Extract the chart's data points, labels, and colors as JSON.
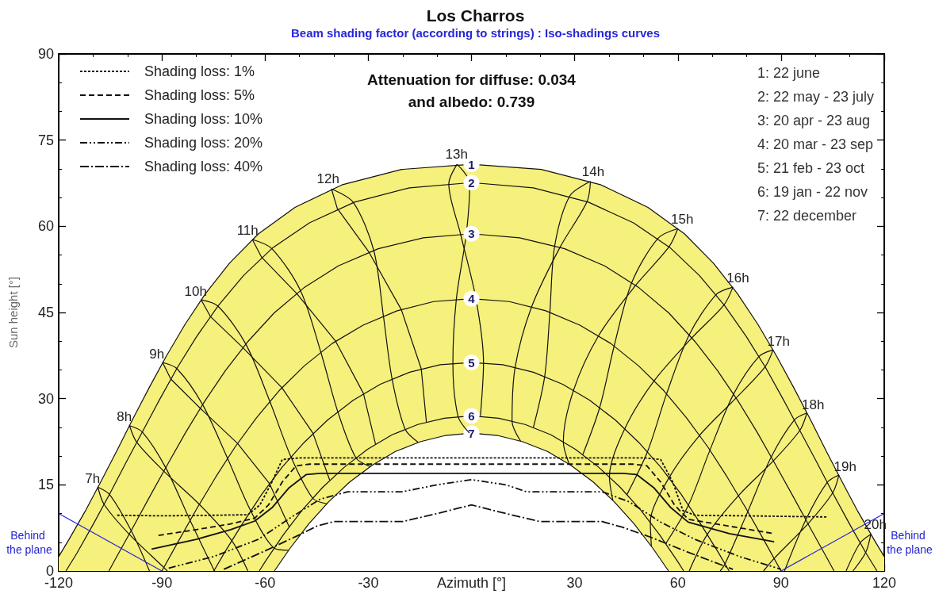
{
  "chart_data": {
    "type": "line",
    "title": "Los Charros",
    "subtitle": "Beam shading factor (according to strings) : Iso-shadings curves",
    "xlabel": "Azimuth [°]",
    "ylabel": "Sun height [°]",
    "xlim": [
      -120,
      120
    ],
    "xticks": [
      -120,
      -90,
      -60,
      -30,
      {
        "value": 0,
        "label": null
      },
      30,
      60,
      90,
      120
    ],
    "ylim": [
      0,
      90
    ],
    "yticks": [
      0,
      15,
      30,
      45,
      60,
      75,
      90
    ],
    "grid": false,
    "legend": "top left",
    "annotations": [
      "Attenuation for diffuse: 0.034",
      "and albedo: 0.739",
      "1: 22 june",
      "2: 22 may - 23 july",
      "3: 20 apr - 23 aug",
      "4: 20 mar - 23 sep",
      "5: 21 feb - 23 oct",
      "6: 19 jan - 22 nov",
      "7: 22 december",
      "Behind the plane",
      "Behind the plane"
    ],
    "series": [
      {
        "type": "area",
        "name": "1",
        "color": "#f6f07c",
        "x": [
          -120,
          -117.1,
          -112.3,
          -107.7,
          -103.1,
          -98.5,
          -93.7,
          -88.7,
          -83.3,
          -77.3,
          -70.3,
          -61.9,
          -51.3,
          -37.7,
          -20.3,
          0,
          20.3,
          37.7,
          51.3,
          61.9,
          70.3,
          77.3,
          83.3,
          88.7,
          93.7,
          98.5,
          103.1,
          107.7,
          112.3,
          117.1,
          120
        ],
        "values": [
          2.5,
          5.4,
          10.4,
          15.6,
          20.9,
          26.4,
          31.9,
          37.4,
          42.9,
          48.3,
          53.6,
          58.7,
          63.3,
          67.2,
          69.9,
          70.8,
          69.9,
          67.2,
          63.3,
          58.7,
          53.6,
          48.3,
          42.9,
          37.4,
          31.9,
          26.4,
          20.9,
          15.6,
          10.4,
          5.4,
          2.5
        ]
      },
      {
        "name": "2",
        "color": "#111111",
        "x": [
          -117.9,
          -114.7,
          -109.9,
          -105.1,
          -100.4,
          -95.6,
          -90.7,
          -85.5,
          -79.9,
          -73.6,
          -66.3,
          -57.7,
          -47.1,
          -34,
          -18,
          0,
          18,
          34,
          47.1,
          57.7,
          66.3,
          73.6,
          79.9,
          85.5,
          90.7,
          95.6,
          100.4,
          105.1,
          109.9,
          114.7,
          117.9
        ],
        "values": [
          0,
          3.1,
          8.2,
          13.5,
          18.9,
          24.3,
          29.8,
          35.4,
          40.8,
          46.2,
          51.4,
          56.3,
          60.6,
          64.2,
          66.7,
          67.6,
          66.7,
          64.2,
          60.6,
          56.3,
          51.4,
          46.2,
          40.8,
          35.4,
          29.8,
          24.3,
          18.9,
          13.5,
          8.2,
          3.1,
          0
        ]
      },
      {
        "name": "3",
        "color": "#111111",
        "x": [
          -105.4,
          -103.4,
          -98.4,
          -93.4,
          -88.3,
          -83.1,
          -77.5,
          -71.5,
          -64.9,
          -57.4,
          -48.7,
          -38.7,
          -27.1,
          -14,
          0,
          14,
          27.1,
          38.7,
          48.7,
          57.4,
          64.9,
          71.5,
          77.5,
          83.1,
          88.3,
          93.4,
          98.4,
          103.4,
          105.4
        ],
        "values": [
          0,
          2.2,
          7.6,
          13.1,
          18.6,
          24.1,
          29.6,
          34.9,
          40,
          44.9,
          49.3,
          53.1,
          56.1,
          58,
          58.7,
          58,
          56.1,
          53.1,
          49.3,
          44.9,
          40,
          34.9,
          29.6,
          24.1,
          18.6,
          13.1,
          7.6,
          2.2,
          0
        ]
      },
      {
        "name": "4",
        "color": "#111111",
        "x": [
          -90,
          -84.9,
          -79.7,
          -74.3,
          -68.7,
          -62.6,
          -55.9,
          -48.6,
          -40.5,
          -31.5,
          -21.6,
          -11,
          0,
          11,
          21.6,
          31.5,
          40.5,
          48.6,
          55.9,
          62.6,
          68.7,
          74.3,
          79.7,
          84.9,
          90
        ],
        "values": [
          0,
          5.5,
          11,
          16.4,
          21.6,
          26.6,
          31.4,
          35.7,
          39.6,
          42.8,
          45.3,
          46.9,
          47.4,
          46.9,
          45.3,
          42.8,
          39.6,
          35.7,
          31.4,
          26.6,
          21.6,
          16.4,
          11,
          5.5,
          0
        ]
      },
      {
        "name": "5",
        "color": "#111111",
        "x": [
          -74.9,
          -71.7,
          -66.4,
          -60.9,
          -55,
          -48.6,
          -41.8,
          -34.4,
          -26.5,
          -18,
          -9.1,
          0,
          9.1,
          18,
          26.5,
          34.4,
          41.8,
          48.6,
          55,
          60.9,
          66.4,
          71.7,
          74.9
        ],
        "values": [
          0,
          3.3,
          8.4,
          13.4,
          18.1,
          22.4,
          26.3,
          29.7,
          32.5,
          34.6,
          35.9,
          36.3,
          35.9,
          34.6,
          32.5,
          29.7,
          26.3,
          22.4,
          18.1,
          13.4,
          8.4,
          3.3,
          0
        ]
      },
      {
        "name": "6",
        "color": "#111111",
        "x": [
          -61.7,
          -60,
          -54.7,
          -49.2,
          -43.2,
          -36.9,
          -30.2,
          -23.1,
          -15.6,
          -7.9,
          0,
          7.9,
          15.6,
          23.1,
          30.2,
          36.9,
          43.2,
          49.2,
          54.7,
          60,
          61.7
        ],
        "values": [
          0,
          1.6,
          6.3,
          10.6,
          14.6,
          18.1,
          21.2,
          23.7,
          25.5,
          26.6,
          27,
          26.6,
          25.5,
          23.7,
          21.2,
          18.1,
          14.6,
          10.6,
          6.3,
          1.6,
          0
        ]
      },
      {
        "type": "area",
        "name": "7",
        "color": "#ffffff",
        "x": [
          -57.3,
          -52.8,
          -47.3,
          -41.6,
          -35.4,
          -28.9,
          -22.1,
          -14.9,
          -7.5,
          0,
          7.5,
          14.9,
          22.1,
          28.9,
          35.4,
          41.6,
          47.3,
          52.8,
          57.3
        ],
        "values": [
          0,
          3.9,
          8.2,
          12,
          15.5,
          18.4,
          20.8,
          22.5,
          23.6,
          24,
          23.6,
          22.5,
          20.8,
          18.4,
          15.5,
          12,
          8.2,
          3.9,
          0
        ]
      },
      {
        "name": "7h",
        "color": "#111111",
        "x": [
          -93.6,
          -98.9,
          -105.2,
          -108.6,
          -106.8,
          -99.5,
          -89.4,
          -88.4
        ],
        "values": [
          0,
          7,
          13.3,
          14.6,
          11.6,
          6.4,
          0.6,
          0
        ]
      },
      {
        "name": "8h",
        "color": "#111111",
        "x": [
          -74.6,
          -74.8,
          -81.8,
          -88.9,
          -95.7,
          -99.4,
          -97.3,
          -89.5,
          -79.1,
          -69.7,
          -65
        ],
        "values": [
          0,
          0.1,
          8.8,
          18,
          24.2,
          25.3,
          22.4,
          17.4,
          11.6,
          5.3,
          0
        ]
      },
      {
        "name": "9h",
        "color": "#111111",
        "x": [
          -53.2,
          -57.4,
          -64.2,
          -70.9,
          -78.2,
          -85.6,
          -89.8
        ],
        "values": [
          3.6,
          4,
          10.5,
          19.6,
          29,
          35.2,
          36.3
        ]
      },
      {
        "color": "#111111",
        "x": [
          -89.8,
          -87.4,
          -78.8,
          -68,
          -58.7,
          -53
        ],
        "values": [
          36.3,
          33.4,
          28.3,
          22.2,
          15.2,
          7.7
        ]
      },
      {
        "name": "10h",
        "color": "#111111",
        "x": [
          -42,
          -46.2,
          -52.5,
          -58.6,
          -65.6,
          -73.7,
          -78.6
        ],
        "values": [
          11.7,
          12.7,
          19.9,
          29.5,
          39.5,
          46.1,
          47.2
        ]
      },
      {
        "color": "#111111",
        "x": [
          -78.6,
          -75.9,
          -66.5,
          -55.1,
          -46.1,
          -41.2
        ],
        "values": [
          47.2,
          44.3,
          38.9,
          31.9,
          24,
          15.8
        ]
      },
      {
        "name": "11h",
        "color": "#111111",
        "x": [
          -29.5,
          -33.6,
          -38.9,
          -43.8,
          -49.7,
          -58,
          -63.7
        ],
        "values": [
          18.2,
          19.7,
          27.8,
          38.1,
          48.8,
          56.1,
          57.7
        ]
      },
      {
        "color": "#111111",
        "x": [
          -63.7,
          -61,
          -50.8,
          -39.5,
          -31.4,
          -27.9
        ],
        "values": [
          57.7,
          54.6,
          48.3,
          40,
          30.9,
          22.1
        ]
      },
      {
        "name": "12h",
        "color": "#111111",
        "x": [
          -15.5,
          -19.3,
          -23.1,
          -25.6,
          -28.4,
          -34.4,
          -40.7
        ],
        "values": [
          22.4,
          24.7,
          33.5,
          44.4,
          55.8,
          64.2,
          66.5
        ]
      },
      {
        "color": "#111111",
        "x": [
          -40.7,
          -39,
          -29.8,
          -20.4,
          -14.6,
          -13.1
        ],
        "values": [
          66.5,
          63.1,
          55.5,
          45.5,
          35.2,
          25.9
        ]
      },
      {
        "name": "13h",
        "color": "#111111",
        "x": [
          -0.6,
          -3.9,
          -5.4,
          -4.4,
          -1.5,
          -0.5,
          -4.2
        ],
        "values": [
          24,
          26.9,
          36.2,
          47.3,
          58.7,
          67.5,
          70.8
        ]
      },
      {
        "color": "#111111",
        "x": [
          -4.2,
          -6.6,
          -3.2,
          1.3,
          3.5,
          2.6
        ],
        "values": [
          70.8,
          67.4,
          58.7,
          47.4,
          36.3,
          27
        ]
      },
      {
        "name": "14h",
        "color": "#111111",
        "x": [
          14.3,
          11.8,
          12.7,
          17.5,
          25.7,
          33.6,
          34.6
        ],
        "values": [
          22.6,
          26.1,
          35.5,
          46,
          56.3,
          64.3,
          67.8
        ]
      },
      {
        "color": "#111111",
        "x": [
          34.6,
          28.6,
          24.2,
          22.8,
          21.3,
          18
        ],
        "values": [
          67.8,
          65.3,
          56.6,
          45.1,
          33.9,
          25
        ]
      },
      {
        "name": "15h",
        "color": "#111111",
        "x": [
          28.4,
          26.7,
          29.7,
          37,
          47.7,
          57.4,
          60
        ],
        "values": [
          18.6,
          22.5,
          31.5,
          41,
          49.7,
          56.4,
          59.6
        ]
      },
      {
        "color": "#111111",
        "x": [
          60,
          54.2,
          46.6,
          41.5,
          37.3,
          32.4
        ],
        "values": [
          59.6,
          57.9,
          50.2,
          39.2,
          28.5,
          20.3
        ]
      },
      {
        "name": "16h",
        "color": "#111111",
        "x": [
          41.1,
          40.1,
          44.6,
          53.1,
          64.1,
          73.4,
          76
        ],
        "values": [
          12.3,
          16.4,
          24.8,
          33.1,
          40.6,
          46.3,
          49.4
        ]
      },
      {
        "color": "#111111",
        "x": [
          76,
          71.1,
          63.3,
          56.7,
          51.2,
          45.2
        ],
        "values": [
          49.4,
          48.1,
          41.1,
          30.8,
          20.8,
          13.3
        ]
      },
      {
        "name": "17h",
        "color": "#111111",
        "x": [
          52.3,
          52,
          57.4,
          66.3,
          76.9,
          85.3,
          87.7
        ],
        "values": [
          4.3,
          8.5,
          16.2,
          23.6,
          30.1,
          35.5,
          38.5
        ]
      },
      {
        "color": "#111111",
        "x": [
          87.7,
          83.5,
          76.2,
          69.3,
          63.1,
          56.5
        ],
        "values": [
          38.5,
          37.3,
          30.8,
          21,
          11.5,
          4.8
        ]
      },
      {
        "name": "18h",
        "color": "#111111",
        "x": [
          63.3,
          68.6,
          77.6,
          87.8,
          95.5,
          97.5,
          93.9,
          87.2,
          80.3,
          73.7,
          72.3
        ],
        "values": [
          0,
          6.4,
          13.1,
          19.2,
          24.5,
          27.5,
          26.3,
          19.9,
          10.3,
          1.2,
          0
        ]
      },
      {
        "name": "19h",
        "color": "#111111",
        "x": [
          84.9,
          88,
          97.8,
          105,
          106.8,
          103.4,
          97.2,
          91
        ],
        "values": [
          0,
          2.2,
          8.2,
          13.6,
          16.7,
          15.4,
          8.9,
          0
        ]
      },
      {
        "name": "20h",
        "color": "#111111",
        "x": [
          110.9,
          114.6,
          116.1,
          113,
          108.9
        ],
        "values": [
          0,
          3.2,
          6.4,
          4.9,
          0
        ]
      },
      {
        "name": "Shading loss: 1%",
        "color": "#111111",
        "line_style": "dotted",
        "x": [
          -103,
          -90,
          -75,
          -65,
          -61.5,
          -58,
          -55,
          -50,
          0,
          50,
          55,
          58.5,
          61.5,
          65,
          80,
          103.5
        ],
        "values": [
          9.7,
          9.6,
          9.7,
          9.8,
          11.5,
          15.5,
          19.4,
          19.7,
          19.7,
          19.7,
          19.4,
          15.5,
          10.5,
          9.7,
          9.6,
          9.4
        ]
      },
      {
        "name": "Shading loss: 5%",
        "color": "#111111",
        "line_style": "dashed",
        "x": [
          -91,
          -80,
          -70,
          -63,
          -59,
          -55,
          -51,
          -47,
          0,
          47,
          51,
          55,
          59,
          63,
          75,
          88
        ],
        "values": [
          6.2,
          7.2,
          8.2,
          9.2,
          11.5,
          15.5,
          18.3,
          18.6,
          18.6,
          18.6,
          18.3,
          15.5,
          11.5,
          9,
          7.8,
          6.5
        ]
      },
      {
        "name": "Shading loss: 10%",
        "color": "#111111",
        "line_style": "solid",
        "x": [
          -93,
          -80,
          -70,
          -63,
          -58,
          -53,
          -48,
          -44,
          0,
          44,
          48,
          53,
          58,
          63,
          75,
          88
        ],
        "values": [
          3.8,
          5.5,
          7.2,
          8.7,
          11,
          14.5,
          16.8,
          17,
          17,
          17,
          16.8,
          14.5,
          11,
          8.5,
          6.5,
          5.1
        ]
      },
      {
        "name": "Shading loss: 20%",
        "color": "#111111",
        "line_style": "dashdotdot",
        "x": [
          -88,
          -75,
          -62,
          -52,
          -44,
          -36,
          -20,
          -10,
          0,
          10,
          16,
          38,
          46,
          55,
          65,
          78,
          90
        ],
        "values": [
          0.5,
          2.5,
          5.5,
          9.5,
          12.5,
          13.8,
          13.8,
          15,
          15.9,
          15,
          13.8,
          13.8,
          12,
          8.5,
          5.5,
          2.5,
          0.3
        ]
      },
      {
        "name": "Shading loss: 40%",
        "color": "#111111",
        "line_style": "dashdot",
        "x": [
          -72,
          -60,
          -50,
          -45,
          -40,
          -20,
          -10,
          0,
          10,
          20,
          38,
          44,
          52,
          62,
          76
        ],
        "values": [
          0.3,
          3.5,
          6.3,
          7.8,
          8.6,
          8.6,
          10,
          11.5,
          10,
          8.6,
          8.6,
          7.6,
          5.9,
          3.5,
          0.3
        ]
      },
      {
        "color": "#2323d6",
        "x": [
          -120,
          -90
        ],
        "values": [
          10,
          0
        ]
      },
      {
        "color": "#2323d6",
        "x": [
          90,
          120
        ],
        "values": [
          0,
          10
        ]
      }
    ]
  }
}
